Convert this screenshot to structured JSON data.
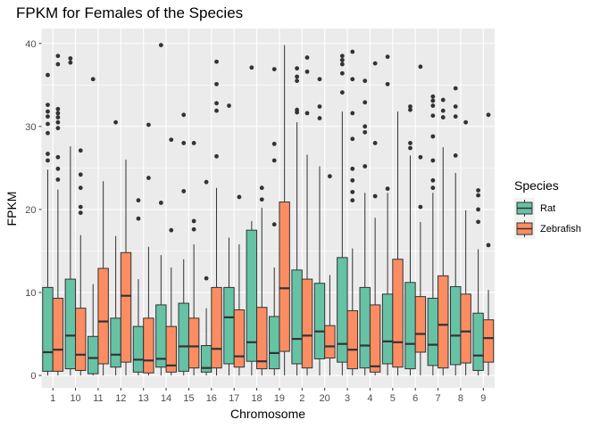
{
  "chart_data": {
    "type": "boxplot",
    "title": "FPKM for Females of the Species",
    "xlabel": "Chromosome",
    "ylabel": "FPKM",
    "ylim": [
      -1.5,
      41.8
    ],
    "yticks": [
      0,
      10,
      20,
      30,
      40
    ],
    "grid": true,
    "legend": {
      "title": "Species",
      "position": "right"
    },
    "categories": [
      "1",
      "10",
      "11",
      "12",
      "13",
      "14",
      "15",
      "16",
      "17",
      "18",
      "19",
      "2",
      "20",
      "3",
      "4",
      "5",
      "6",
      "7",
      "8",
      "9"
    ],
    "series": [
      {
        "name": "Rat",
        "color": "#66c2a5",
        "boxes": [
          {
            "min": 0,
            "q1": 0.5,
            "median": 2.8,
            "q3": 10.6,
            "max": 24.8,
            "outliers": [
              25.9,
              26.7,
              29.2,
              30.3,
              31.2,
              31.8,
              32.6,
              36.2
            ]
          },
          {
            "min": 0,
            "q1": 0.8,
            "median": 4.8,
            "q3": 11.6,
            "max": 27.6,
            "outliers": [
              37.7,
              38.2
            ]
          },
          {
            "min": 0,
            "q1": 0.2,
            "median": 2.1,
            "q3": 4.7,
            "max": 11.0,
            "outliers": [
              35.7
            ]
          },
          {
            "min": 0,
            "q1": 1.0,
            "median": 2.5,
            "q3": 6.9,
            "max": 16.8,
            "outliers": [
              30.5
            ]
          },
          {
            "min": 0,
            "q1": 0.4,
            "median": 1.9,
            "q3": 5.9,
            "max": 11.6,
            "outliers": [
              18.9,
              21.1
            ]
          },
          {
            "min": 0,
            "q1": 1.0,
            "median": 2.0,
            "q3": 8.5,
            "max": 14.5,
            "outliers": [
              20.8,
              39.8
            ]
          },
          {
            "min": 0,
            "q1": 0.5,
            "median": 3.5,
            "q3": 8.7,
            "max": 14.0,
            "outliers": [
              22.2,
              28.0,
              31.4
            ]
          },
          {
            "min": 0,
            "q1": 0.4,
            "median": 0.9,
            "q3": 3.6,
            "max": 8.1,
            "outliers": [
              11.7,
              23.3
            ]
          },
          {
            "min": 0,
            "q1": 1.4,
            "median": 7.0,
            "q3": 10.6,
            "max": 16.6,
            "outliers": [
              32.5
            ]
          },
          {
            "min": 0,
            "q1": 1.7,
            "median": 4.0,
            "q3": 17.5,
            "max": 18.6,
            "outliers": [
              37.1
            ]
          },
          {
            "min": 0,
            "q1": 0.8,
            "median": 2.7,
            "q3": 7.1,
            "max": 13.0,
            "outliers": [
              18.2,
              25.9,
              27.9,
              36.9
            ]
          },
          {
            "min": 0,
            "q1": 1.4,
            "median": 4.4,
            "q3": 12.7,
            "max": 30.5,
            "outliers": [
              31.7,
              32.0,
              35.5,
              36.0,
              37.0
            ]
          },
          {
            "min": 0,
            "q1": 2.0,
            "median": 5.3,
            "q3": 11.1,
            "max": 25.2,
            "outliers": [
              31.0,
              32.4,
              35.7
            ]
          },
          {
            "min": 0,
            "q1": 1.6,
            "median": 3.8,
            "q3": 14.2,
            "max": 31.8,
            "outliers": [
              34.1,
              36.4,
              37.5,
              38.0,
              38.5
            ]
          },
          {
            "min": 0,
            "q1": 0.9,
            "median": 3.6,
            "q3": 10.6,
            "max": 22.0,
            "outliers": [
              25.2,
              29.3,
              30.0,
              32.9,
              35.5
            ]
          },
          {
            "min": 0,
            "q1": 1.4,
            "median": 4.1,
            "q3": 9.8,
            "max": 22.0,
            "outliers": [
              22.5,
              35.1,
              38.4
            ]
          },
          {
            "min": 0,
            "q1": 0.8,
            "median": 3.8,
            "q3": 11.2,
            "max": 26.5,
            "outliers": [
              27.4,
              28.0,
              32.0,
              32.4
            ]
          },
          {
            "min": 0,
            "q1": 1.2,
            "median": 3.7,
            "q3": 9.3,
            "max": 22.0,
            "outliers": [
              22.6,
              23.5,
              25.9,
              28.8,
              31.3,
              32.5,
              33.1,
              33.6
            ]
          },
          {
            "min": 0,
            "q1": 1.3,
            "median": 4.8,
            "q3": 10.7,
            "max": 24.4,
            "outliers": [
              26.5,
              31.2,
              32.4,
              34.6
            ]
          },
          {
            "min": 0,
            "q1": 0.6,
            "median": 2.4,
            "q3": 7.5,
            "max": 15.2,
            "outliers": [
              18.5,
              20.0,
              21.7,
              22.3
            ]
          }
        ]
      },
      {
        "name": "Zebrafish",
        "color": "#fc8d62",
        "boxes": [
          {
            "min": 0,
            "q1": 0.5,
            "median": 3.1,
            "q3": 9.3,
            "max": 22.4,
            "outliers": [
              23.6,
              24.9,
              26.3,
              29.8,
              30.5,
              31.1,
              31.6,
              32.1,
              37.5,
              38.5
            ]
          },
          {
            "min": 0,
            "q1": 0.6,
            "median": 2.5,
            "q3": 8.1,
            "max": 16.9,
            "outliers": [
              19.6,
              20.3,
              22.6,
              24.2,
              27.1
            ]
          },
          {
            "min": 0,
            "q1": 1.4,
            "median": 6.5,
            "q3": 12.9,
            "max": 23.4,
            "outliers": []
          },
          {
            "min": 0,
            "q1": 1.6,
            "median": 9.6,
            "q3": 14.8,
            "max": 26.0,
            "outliers": []
          },
          {
            "min": 0,
            "q1": 0.3,
            "median": 1.8,
            "q3": 6.9,
            "max": 15.5,
            "outliers": [
              23.8,
              30.2
            ]
          },
          {
            "min": 0,
            "q1": 0.4,
            "median": 1.2,
            "q3": 5.9,
            "max": 13.0,
            "outliers": [
              17.5,
              28.4
            ]
          },
          {
            "min": 0,
            "q1": 0.9,
            "median": 3.5,
            "q3": 6.9,
            "max": 15.8,
            "outliers": [
              17.6,
              18.6,
              28.0
            ]
          },
          {
            "min": 0,
            "q1": 0.9,
            "median": 3.2,
            "q3": 10.6,
            "max": 22.6,
            "outliers": [
              26.4,
              31.9,
              32.8,
              35.1,
              37.8
            ]
          },
          {
            "min": 0,
            "q1": 1.0,
            "median": 2.3,
            "q3": 7.9,
            "max": 15.8,
            "outliers": [
              21.5
            ]
          },
          {
            "min": 0,
            "q1": 0.8,
            "median": 1.7,
            "q3": 8.2,
            "max": 20.2,
            "outliers": [
              21.2,
              22.6
            ]
          },
          {
            "min": 0,
            "q1": 2.9,
            "median": 10.5,
            "q3": 20.9,
            "max": 39.8,
            "outliers": []
          },
          {
            "min": 0,
            "q1": 0.9,
            "median": 4.8,
            "q3": 11.6,
            "max": 26.6,
            "outliers": [
              31.6,
              36.6,
              38.3
            ]
          },
          {
            "min": 0,
            "q1": 2.1,
            "median": 3.5,
            "q3": 6.0,
            "max": 12.1,
            "outliers": [
              24.0
            ]
          },
          {
            "min": 0,
            "q1": 0.8,
            "median": 3.1,
            "q3": 7.8,
            "max": 15.3,
            "outliers": [
              21.1,
              22.1,
              23.5,
              24.9,
              28.5,
              31.6,
              35.7,
              39.0
            ]
          },
          {
            "min": 0,
            "q1": 0.4,
            "median": 1.1,
            "q3": 8.5,
            "max": 19.0,
            "outliers": [
              21.6,
              28.0,
              37.6
            ]
          },
          {
            "min": 0,
            "q1": 1.0,
            "median": 4.0,
            "q3": 14.0,
            "max": 31.8,
            "outliers": []
          },
          {
            "min": 0,
            "q1": 2.8,
            "median": 5.0,
            "q3": 9.5,
            "max": 18.5,
            "outliers": [
              20.3,
              26.3,
              37.2
            ]
          },
          {
            "min": 0,
            "q1": 0.9,
            "median": 6.1,
            "q3": 12.0,
            "max": 27.5,
            "outliers": [
              31.1,
              31.9,
              33.2
            ]
          },
          {
            "min": 0,
            "q1": 1.5,
            "median": 5.3,
            "q3": 9.8,
            "max": 19.9,
            "outliers": [
              30.5
            ]
          },
          {
            "min": 0,
            "q1": 1.6,
            "median": 4.5,
            "q3": 6.7,
            "max": 10.3,
            "outliers": [
              15.7,
              31.4
            ]
          }
        ]
      }
    ]
  }
}
